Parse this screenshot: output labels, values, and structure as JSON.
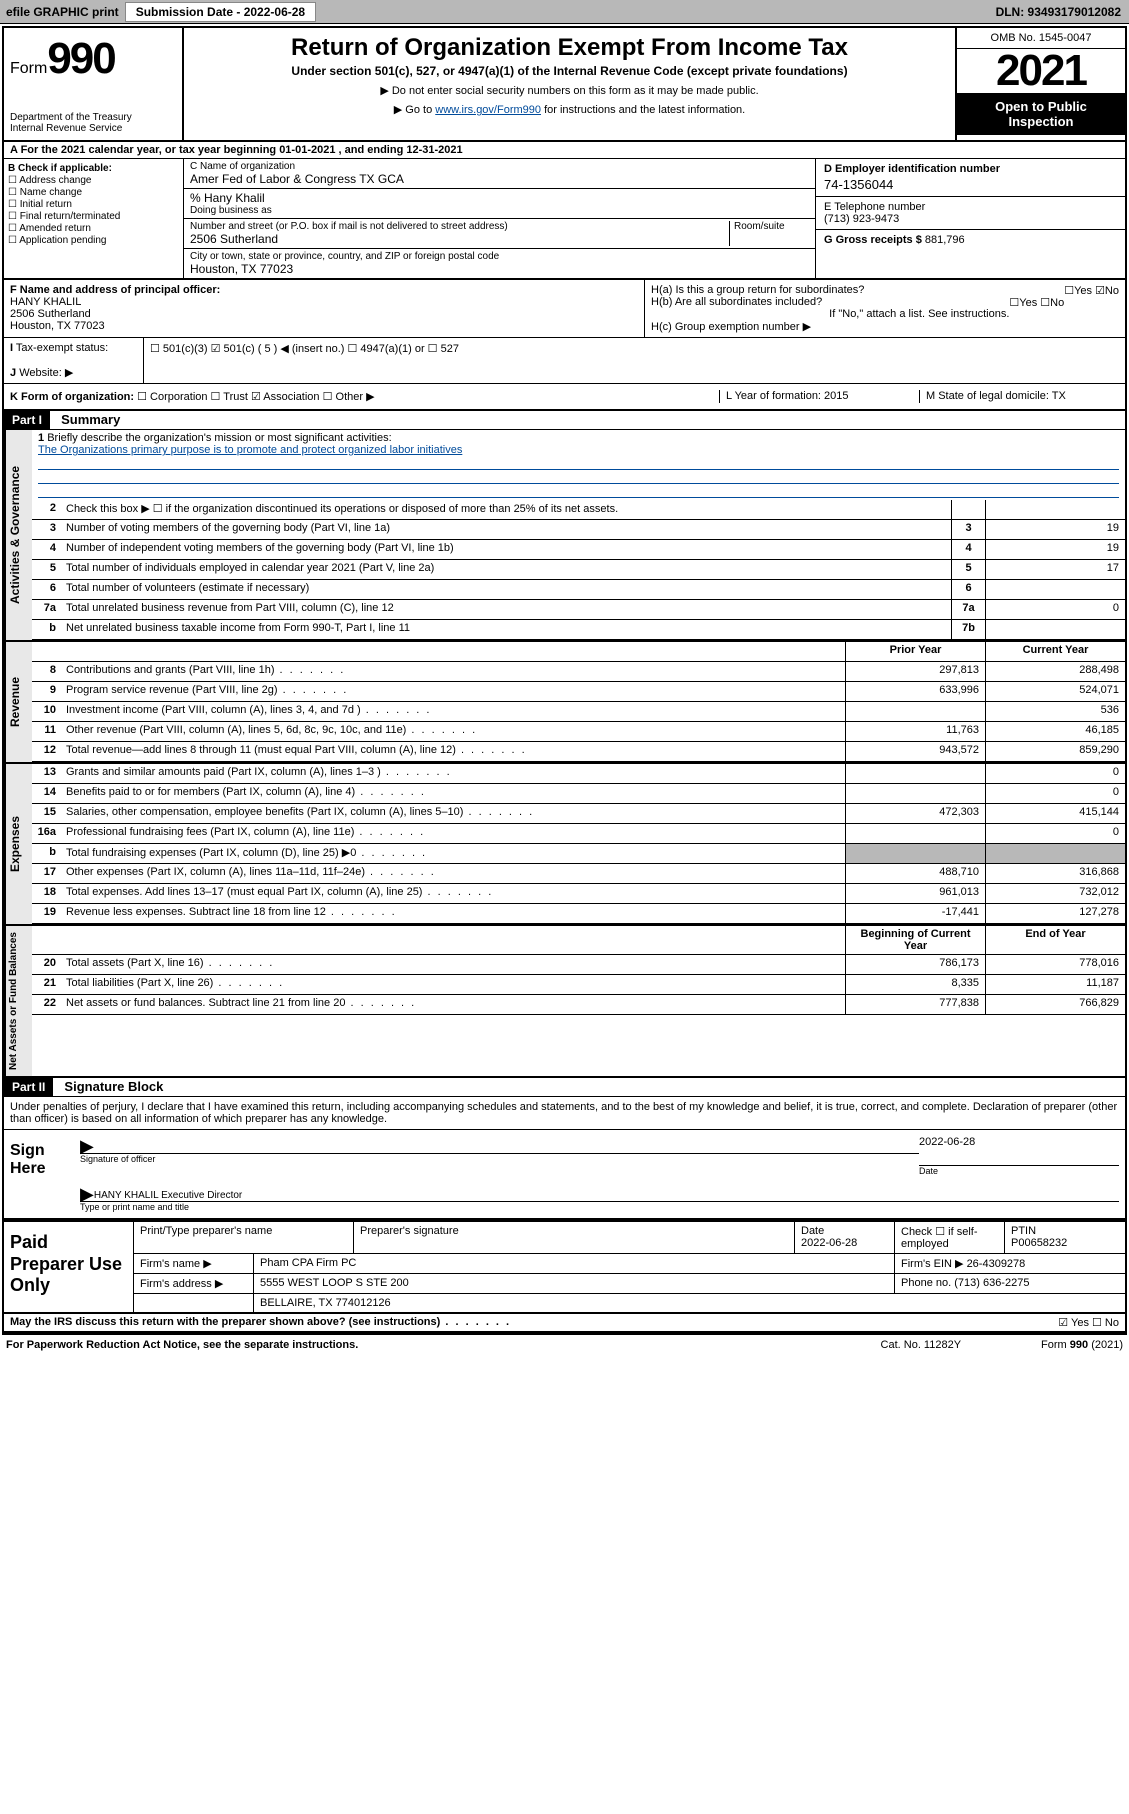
{
  "topbar": {
    "efile": "efile GRAPHIC print",
    "sub_label": "Submission Date - 2022-06-28",
    "dln": "DLN: 93493179012082"
  },
  "header": {
    "form_prefix": "Form",
    "form_no": "990",
    "title": "Return of Organization Exempt From Income Tax",
    "subtitle": "Under section 501(c), 527, or 4947(a)(1) of the Internal Revenue Code (except private foundations)",
    "inst1": "▶ Do not enter social security numbers on this form as it may be made public.",
    "inst2_pre": "▶ Go to ",
    "inst2_link": "www.irs.gov/Form990",
    "inst2_post": " for instructions and the latest information.",
    "dept": "Department of the Treasury\nInternal Revenue Service",
    "omb": "OMB No. 1545-0047",
    "year": "2021",
    "open": "Open to Public Inspection"
  },
  "period": "A For the 2021 calendar year, or tax year beginning 01-01-2021   , and ending 12-31-2021",
  "boxB": {
    "hdr": "B Check if applicable:",
    "items": [
      "Address change",
      "Name change",
      "Initial return",
      "Final return/terminated",
      "Amended return",
      "Application pending"
    ]
  },
  "boxC": {
    "name_label": "C Name of organization",
    "name": "Amer Fed of Labor & Congress TX GCA",
    "care_label": "% Hany Khalil",
    "dba_label": "Doing business as",
    "addr_label": "Number and street (or P.O. box if mail is not delivered to street address)",
    "room_label": "Room/suite",
    "addr": "2506 Sutherland",
    "city_label": "City or town, state or province, country, and ZIP or foreign postal code",
    "city": "Houston, TX  77023"
  },
  "boxD": {
    "ein_label": "D Employer identification number",
    "ein": "74-1356044",
    "phone_label": "E Telephone number",
    "phone": "(713) 923-9473",
    "gross_label": "G Gross receipts $",
    "gross": "881,796"
  },
  "boxF": {
    "label": "F  Name and address of principal officer:",
    "name": "HANY KHALIL",
    "addr1": "2506 Sutherland",
    "addr2": "Houston, TX  77023"
  },
  "boxH": {
    "a": "H(a)  Is this a group return for subordinates?",
    "a_ans": "☐Yes ☑No",
    "b": "H(b)  Are all subordinates included?",
    "b_ans": "☐Yes ☐No",
    "b_note": "If \"No,\" attach a list. See instructions.",
    "c": "H(c)  Group exemption number ▶"
  },
  "boxI": {
    "label": "Tax-exempt status:",
    "text": "501(c)(3)    ☑ 501(c) ( 5 ) ◀ (insert no.)    ☐ 4947(a)(1) or   ☐ 527"
  },
  "boxJ": {
    "label": "Website: ▶"
  },
  "boxK": {
    "label": "K Form of organization:",
    "text": "☐ Corporation  ☐ Trust  ☑ Association  ☐ Other ▶",
    "l": "L Year of formation: 2015",
    "m": "M State of legal domicile: TX"
  },
  "part1": {
    "hdr": "Part I",
    "title": "Summary"
  },
  "mission": {
    "q": "Briefly describe the organization's mission or most significant activities:",
    "text": "The Organizations primary purpose is to promote and protect organized labor initiatives"
  },
  "lines_gov": [
    {
      "n": "2",
      "d": "Check this box ▶ ☐  if the organization discontinued its operations or disposed of more than 25% of its net assets.",
      "b": "",
      "v": ""
    },
    {
      "n": "3",
      "d": "Number of voting members of the governing body (Part VI, line 1a)",
      "b": "3",
      "v": "19"
    },
    {
      "n": "4",
      "d": "Number of independent voting members of the governing body (Part VI, line 1b)",
      "b": "4",
      "v": "19"
    },
    {
      "n": "5",
      "d": "Total number of individuals employed in calendar year 2021 (Part V, line 2a)",
      "b": "5",
      "v": "17"
    },
    {
      "n": "6",
      "d": "Total number of volunteers (estimate if necessary)",
      "b": "6",
      "v": ""
    },
    {
      "n": "7a",
      "d": "Total unrelated business revenue from Part VIII, column (C), line 12",
      "b": "7a",
      "v": "0"
    },
    {
      "n": "b",
      "d": "Net unrelated business taxable income from Form 990-T, Part I, line 11",
      "b": "7b",
      "v": ""
    }
  ],
  "col_hdr": {
    "prior": "Prior Year",
    "current": "Current Year"
  },
  "lines_rev": [
    {
      "n": "8",
      "d": "Contributions and grants (Part VIII, line 1h)",
      "p": "297,813",
      "c": "288,498"
    },
    {
      "n": "9",
      "d": "Program service revenue (Part VIII, line 2g)",
      "p": "633,996",
      "c": "524,071"
    },
    {
      "n": "10",
      "d": "Investment income (Part VIII, column (A), lines 3, 4, and 7d )",
      "p": "",
      "c": "536"
    },
    {
      "n": "11",
      "d": "Other revenue (Part VIII, column (A), lines 5, 6d, 8c, 9c, 10c, and 11e)",
      "p": "11,763",
      "c": "46,185"
    },
    {
      "n": "12",
      "d": "Total revenue—add lines 8 through 11 (must equal Part VIII, column (A), line 12)",
      "p": "943,572",
      "c": "859,290"
    }
  ],
  "lines_exp": [
    {
      "n": "13",
      "d": "Grants and similar amounts paid (Part IX, column (A), lines 1–3 )",
      "p": "",
      "c": "0"
    },
    {
      "n": "14",
      "d": "Benefits paid to or for members (Part IX, column (A), line 4)",
      "p": "",
      "c": "0"
    },
    {
      "n": "15",
      "d": "Salaries, other compensation, employee benefits (Part IX, column (A), lines 5–10)",
      "p": "472,303",
      "c": "415,144"
    },
    {
      "n": "16a",
      "d": "Professional fundraising fees (Part IX, column (A), line 11e)",
      "p": "",
      "c": "0"
    },
    {
      "n": "b",
      "d": "Total fundraising expenses (Part IX, column (D), line 25) ▶0",
      "p": "shade",
      "c": "shade"
    },
    {
      "n": "17",
      "d": "Other expenses (Part IX, column (A), lines 11a–11d, 11f–24e)",
      "p": "488,710",
      "c": "316,868"
    },
    {
      "n": "18",
      "d": "Total expenses. Add lines 13–17 (must equal Part IX, column (A), line 25)",
      "p": "961,013",
      "c": "732,012"
    },
    {
      "n": "19",
      "d": "Revenue less expenses. Subtract line 18 from line 12",
      "p": "-17,441",
      "c": "127,278"
    }
  ],
  "col_hdr2": {
    "prior": "Beginning of Current Year",
    "current": "End of Year"
  },
  "lines_net": [
    {
      "n": "20",
      "d": "Total assets (Part X, line 16)",
      "p": "786,173",
      "c": "778,016"
    },
    {
      "n": "21",
      "d": "Total liabilities (Part X, line 26)",
      "p": "8,335",
      "c": "11,187"
    },
    {
      "n": "22",
      "d": "Net assets or fund balances. Subtract line 21 from line 20",
      "p": "777,838",
      "c": "766,829"
    }
  ],
  "vtabs": {
    "gov": "Activities & Governance",
    "rev": "Revenue",
    "exp": "Expenses",
    "net": "Net Assets or Fund Balances"
  },
  "part2": {
    "hdr": "Part II",
    "title": "Signature Block"
  },
  "penalties": "Under penalties of perjury, I declare that I have examined this return, including accompanying schedules and statements, and to the best of my knowledge and belief, it is true, correct, and complete. Declaration of preparer (other than officer) is based on all information of which preparer has any knowledge.",
  "sign": {
    "here": "Sign Here",
    "sig_label": "Signature of officer",
    "date_label": "Date",
    "date": "2022-06-28",
    "name": "HANY KHALIL Executive Director",
    "name_label": "Type or print name and title"
  },
  "paid": {
    "label": "Paid Preparer Use Only",
    "c1": "Print/Type preparer's name",
    "c2": "Preparer's signature",
    "c3": "Date",
    "c3v": "2022-06-28",
    "c4": "Check ☐ if self-employed",
    "c5": "PTIN",
    "c5v": "P00658232",
    "firm_label": "Firm's name    ▶",
    "firm": "Pham CPA Firm PC",
    "ein_label": "Firm's EIN ▶",
    "ein": "26-4309278",
    "addr_label": "Firm's address ▶",
    "addr1": "5555 WEST LOOP S STE 200",
    "addr2": "BELLAIRE, TX  774012126",
    "phone_label": "Phone no.",
    "phone": "(713) 636-2275"
  },
  "discuss": {
    "q": "May the IRS discuss this return with the preparer shown above? (see instructions)",
    "ans": "☑ Yes  ☐ No"
  },
  "footer": {
    "pra": "For Paperwork Reduction Act Notice, see the separate instructions.",
    "cat": "Cat. No. 11282Y",
    "form": "Form 990 (2021)"
  }
}
